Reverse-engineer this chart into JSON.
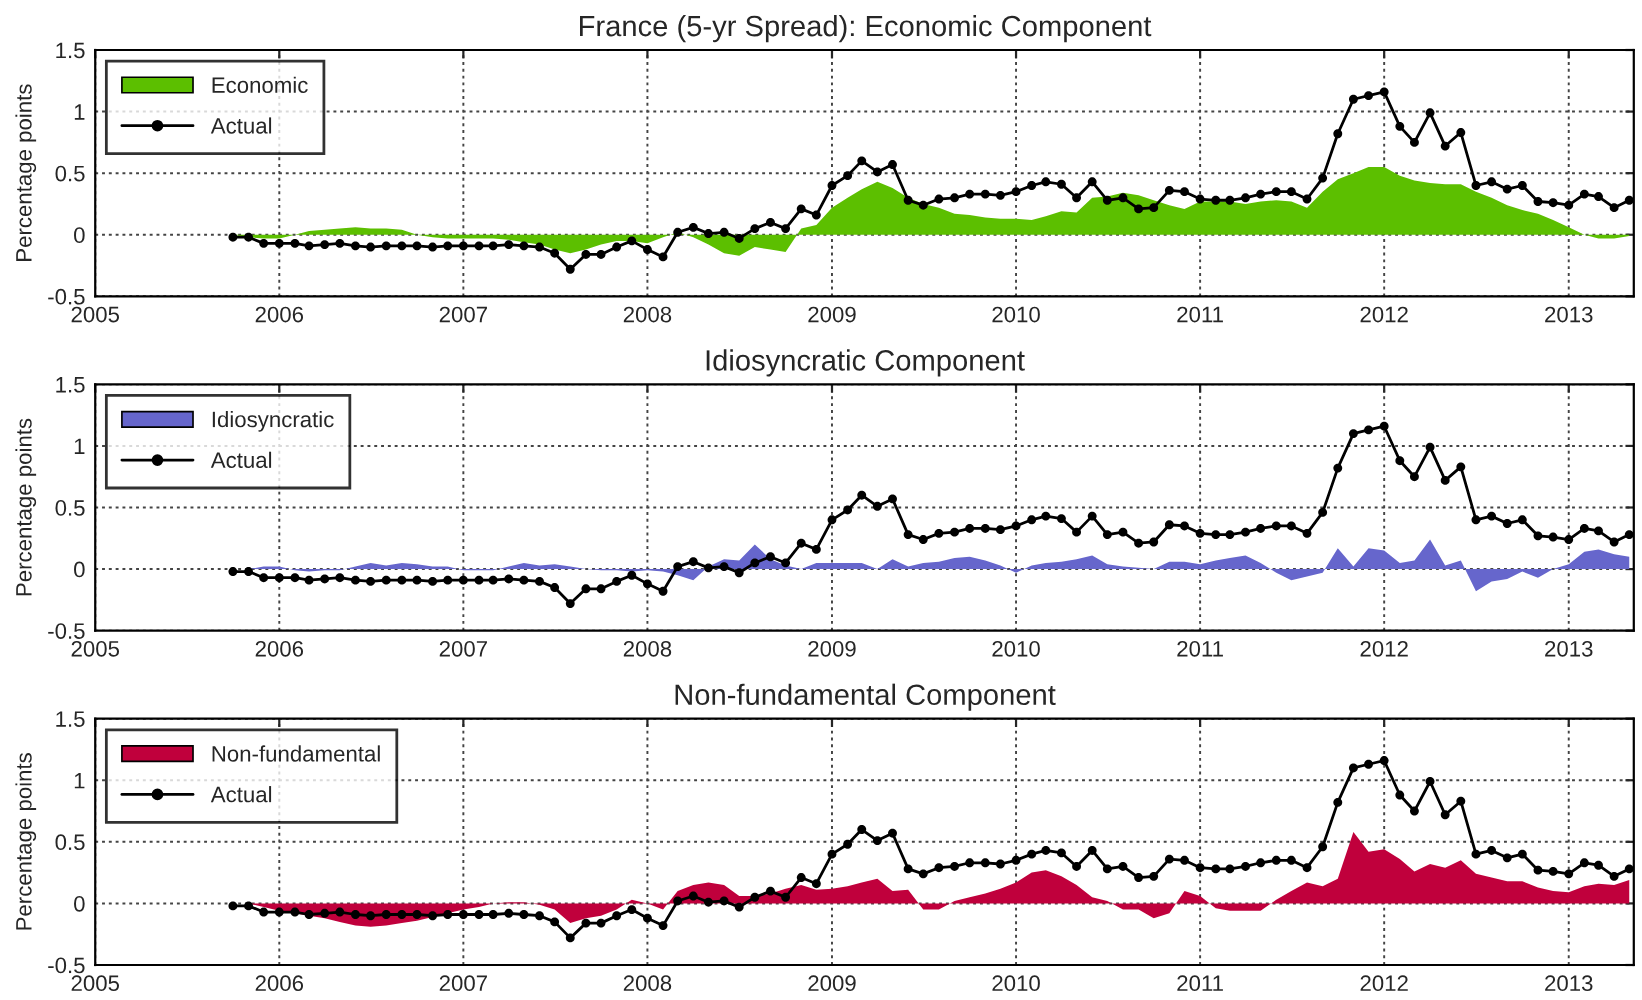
{
  "chart_data": [
    {
      "type": "area",
      "title": "France (5-yr Spread): Economic Component",
      "ylabel": "Percentage points",
      "x": [
        "2005-10",
        "2005-11",
        "2005-12",
        "2006-01",
        "2006-02",
        "2006-03",
        "2006-04",
        "2006-05",
        "2006-06",
        "2006-07",
        "2006-08",
        "2006-09",
        "2006-10",
        "2006-11",
        "2006-12",
        "2007-01",
        "2007-02",
        "2007-03",
        "2007-04",
        "2007-05",
        "2007-06",
        "2007-07",
        "2007-08",
        "2007-09",
        "2007-10",
        "2007-11",
        "2007-12",
        "2008-01",
        "2008-02",
        "2008-03",
        "2008-04",
        "2008-05",
        "2008-06",
        "2008-07",
        "2008-08",
        "2008-09",
        "2008-10",
        "2008-11",
        "2008-12",
        "2009-01",
        "2009-02",
        "2009-03",
        "2009-04",
        "2009-05",
        "2009-06",
        "2009-07",
        "2009-08",
        "2009-09",
        "2009-10",
        "2009-11",
        "2009-12",
        "2010-01",
        "2010-02",
        "2010-03",
        "2010-04",
        "2010-05",
        "2010-06",
        "2010-07",
        "2010-08",
        "2010-09",
        "2010-10",
        "2010-11",
        "2010-12",
        "2011-01",
        "2011-02",
        "2011-03",
        "2011-04",
        "2011-05",
        "2011-06",
        "2011-07",
        "2011-08",
        "2011-09",
        "2011-10",
        "2011-11",
        "2011-12",
        "2012-01",
        "2012-02",
        "2012-03",
        "2012-04",
        "2012-05",
        "2012-06",
        "2012-07",
        "2012-08",
        "2012-09",
        "2012-10",
        "2012-11",
        "2012-12",
        "2013-01",
        "2013-02",
        "2013-03",
        "2013-04",
        "2013-05"
      ],
      "series": [
        {
          "name": "Economic",
          "color": "#5cbf00",
          "values": [
            0,
            -0.02,
            -0.03,
            -0.03,
            0.0,
            0.03,
            0.04,
            0.05,
            0.06,
            0.05,
            0.05,
            0.04,
            0.0,
            -0.02,
            -0.03,
            -0.03,
            -0.03,
            -0.03,
            -0.04,
            -0.06,
            -0.08,
            -0.12,
            -0.15,
            -0.12,
            -0.08,
            -0.05,
            -0.05,
            -0.07,
            -0.02,
            0.02,
            -0.02,
            -0.08,
            -0.15,
            -0.17,
            -0.1,
            -0.12,
            -0.14,
            0.05,
            0.08,
            0.22,
            0.3,
            0.37,
            0.43,
            0.38,
            0.3,
            0.25,
            0.22,
            0.17,
            0.16,
            0.14,
            0.13,
            0.13,
            0.12,
            0.15,
            0.19,
            0.18,
            0.3,
            0.31,
            0.34,
            0.32,
            0.28,
            0.24,
            0.21,
            0.27,
            0.27,
            0.27,
            0.25,
            0.27,
            0.28,
            0.27,
            0.22,
            0.35,
            0.45,
            0.5,
            0.55,
            0.55,
            0.48,
            0.44,
            0.42,
            0.41,
            0.41,
            0.35,
            0.3,
            0.24,
            0.2,
            0.17,
            0.12,
            0.06,
            0.0,
            -0.03,
            -0.03,
            -0.01
          ]
        },
        {
          "name": "Actual",
          "type": "line",
          "color": "#000000",
          "marker": "circle",
          "values": [
            -0.02,
            -0.02,
            -0.07,
            -0.07,
            -0.07,
            -0.09,
            -0.08,
            -0.07,
            -0.09,
            -0.1,
            -0.09,
            -0.09,
            -0.09,
            -0.1,
            -0.09,
            -0.09,
            -0.09,
            -0.09,
            -0.08,
            -0.09,
            -0.1,
            -0.15,
            -0.28,
            -0.16,
            -0.16,
            -0.1,
            -0.05,
            -0.12,
            -0.18,
            0.02,
            0.06,
            0.01,
            0.02,
            -0.03,
            0.05,
            0.1,
            0.05,
            0.21,
            0.16,
            0.4,
            0.48,
            0.6,
            0.51,
            0.57,
            0.28,
            0.24,
            0.29,
            0.3,
            0.33,
            0.33,
            0.32,
            0.35,
            0.4,
            0.43,
            0.41,
            0.3,
            0.43,
            0.28,
            0.3,
            0.21,
            0.22,
            0.36,
            0.35,
            0.29,
            0.28,
            0.28,
            0.3,
            0.33,
            0.35,
            0.35,
            0.29,
            0.46,
            0.82,
            1.1,
            1.13,
            1.16,
            0.88,
            0.75,
            0.99,
            0.72,
            0.83,
            0.4,
            0.43,
            0.37,
            0.4,
            0.27,
            0.26,
            0.24,
            0.33,
            0.31,
            0.22,
            0.28
          ]
        }
      ],
      "xlim": [
        "2005-01-01",
        "2013-05-10"
      ],
      "xticks": [
        "2005",
        "2006",
        "2007",
        "2008",
        "2009",
        "2010",
        "2011",
        "2012",
        "2013"
      ],
      "ylim": [
        -0.5,
        1.5
      ],
      "yticks": [
        -0.5,
        0,
        0.5,
        1,
        1.5
      ],
      "grid": true,
      "legend": "top left",
      "line_style": "solid"
    },
    {
      "type": "area",
      "title": "Idiosyncratic Component",
      "ylabel": "Percentage points",
      "x": [
        "2005-10",
        "2005-11",
        "2005-12",
        "2006-01",
        "2006-02",
        "2006-03",
        "2006-04",
        "2006-05",
        "2006-06",
        "2006-07",
        "2006-08",
        "2006-09",
        "2006-10",
        "2006-11",
        "2006-12",
        "2007-01",
        "2007-02",
        "2007-03",
        "2007-04",
        "2007-05",
        "2007-06",
        "2007-07",
        "2007-08",
        "2007-09",
        "2007-10",
        "2007-11",
        "2007-12",
        "2008-01",
        "2008-02",
        "2008-03",
        "2008-04",
        "2008-05",
        "2008-06",
        "2008-07",
        "2008-08",
        "2008-09",
        "2008-10",
        "2008-11",
        "2008-12",
        "2009-01",
        "2009-02",
        "2009-03",
        "2009-04",
        "2009-05",
        "2009-06",
        "2009-07",
        "2009-08",
        "2009-09",
        "2009-10",
        "2009-11",
        "2009-12",
        "2010-01",
        "2010-02",
        "2010-03",
        "2010-04",
        "2010-05",
        "2010-06",
        "2010-07",
        "2010-08",
        "2010-09",
        "2010-10",
        "2010-11",
        "2010-12",
        "2011-01",
        "2011-02",
        "2011-03",
        "2011-04",
        "2011-05",
        "2011-06",
        "2011-07",
        "2011-08",
        "2011-09",
        "2011-10",
        "2011-11",
        "2011-12",
        "2012-01",
        "2012-02",
        "2012-03",
        "2012-04",
        "2012-05",
        "2012-06",
        "2012-07",
        "2012-08",
        "2012-09",
        "2012-10",
        "2012-11",
        "2012-12",
        "2013-01",
        "2013-02",
        "2013-03",
        "2013-04",
        "2013-05"
      ],
      "series": [
        {
          "name": "Idiosyncratic",
          "color": "#6666cc",
          "values": [
            0,
            0,
            0.02,
            0.02,
            -0.01,
            -0.02,
            -0.01,
            -0.01,
            0.02,
            0.05,
            0.03,
            0.05,
            0.04,
            0.02,
            0.02,
            -0.01,
            -0.01,
            -0.01,
            0.02,
            0.05,
            0.03,
            0.04,
            0.02,
            0.0,
            -0.01,
            -0.01,
            -0.02,
            -0.01,
            -0.02,
            -0.05,
            -0.09,
            0.02,
            0.08,
            0.07,
            0.2,
            0.08,
            0.03,
            0.0,
            0.05,
            0.05,
            0.05,
            0.05,
            0.0,
            0.08,
            0.02,
            0.05,
            0.06,
            0.09,
            0.1,
            0.07,
            0.03,
            -0.03,
            0.03,
            0.05,
            0.06,
            0.08,
            0.11,
            0.04,
            0.02,
            0.01,
            0.0,
            0.06,
            0.06,
            0.04,
            0.07,
            0.09,
            0.11,
            0.05,
            -0.03,
            -0.09,
            -0.06,
            -0.03,
            0.17,
            0.02,
            0.17,
            0.15,
            0.05,
            0.07,
            0.24,
            0.03,
            0.07,
            -0.18,
            -0.1,
            -0.08,
            -0.02,
            -0.07,
            0.0,
            0.04,
            0.14,
            0.16,
            0.12,
            0.1
          ]
        },
        {
          "name": "Actual",
          "type": "line",
          "color": "#000000",
          "marker": "circle",
          "values": [
            -0.02,
            -0.02,
            -0.07,
            -0.07,
            -0.07,
            -0.09,
            -0.08,
            -0.07,
            -0.09,
            -0.1,
            -0.09,
            -0.09,
            -0.09,
            -0.1,
            -0.09,
            -0.09,
            -0.09,
            -0.09,
            -0.08,
            -0.09,
            -0.1,
            -0.15,
            -0.28,
            -0.16,
            -0.16,
            -0.1,
            -0.05,
            -0.12,
            -0.18,
            0.02,
            0.06,
            0.01,
            0.02,
            -0.03,
            0.05,
            0.1,
            0.05,
            0.21,
            0.16,
            0.4,
            0.48,
            0.6,
            0.51,
            0.57,
            0.28,
            0.24,
            0.29,
            0.3,
            0.33,
            0.33,
            0.32,
            0.35,
            0.4,
            0.43,
            0.41,
            0.3,
            0.43,
            0.28,
            0.3,
            0.21,
            0.22,
            0.36,
            0.35,
            0.29,
            0.28,
            0.28,
            0.3,
            0.33,
            0.35,
            0.35,
            0.29,
            0.46,
            0.82,
            1.1,
            1.13,
            1.16,
            0.88,
            0.75,
            0.99,
            0.72,
            0.83,
            0.4,
            0.43,
            0.37,
            0.4,
            0.27,
            0.26,
            0.24,
            0.33,
            0.31,
            0.22,
            0.28
          ]
        }
      ],
      "xlim": [
        "2005-01-01",
        "2013-05-10"
      ],
      "xticks": [
        "2005",
        "2006",
        "2007",
        "2008",
        "2009",
        "2010",
        "2011",
        "2012",
        "2013"
      ],
      "ylim": [
        -0.5,
        1.5
      ],
      "yticks": [
        -0.5,
        0,
        0.5,
        1,
        1.5
      ],
      "grid": true,
      "legend": "top left",
      "line_style": "solid"
    },
    {
      "type": "area",
      "title": "Non-fundamental Component",
      "ylabel": "Percentage points",
      "x": [
        "2005-10",
        "2005-11",
        "2005-12",
        "2006-01",
        "2006-02",
        "2006-03",
        "2006-04",
        "2006-05",
        "2006-06",
        "2006-07",
        "2006-08",
        "2006-09",
        "2006-10",
        "2006-11",
        "2006-12",
        "2007-01",
        "2007-02",
        "2007-03",
        "2007-04",
        "2007-05",
        "2007-06",
        "2007-07",
        "2007-08",
        "2007-09",
        "2007-10",
        "2007-11",
        "2007-12",
        "2008-01",
        "2008-02",
        "2008-03",
        "2008-04",
        "2008-05",
        "2008-06",
        "2008-07",
        "2008-08",
        "2008-09",
        "2008-10",
        "2008-11",
        "2008-12",
        "2009-01",
        "2009-02",
        "2009-03",
        "2009-04",
        "2009-05",
        "2009-06",
        "2009-07",
        "2009-08",
        "2009-09",
        "2009-10",
        "2009-11",
        "2009-12",
        "2010-01",
        "2010-02",
        "2010-03",
        "2010-04",
        "2010-05",
        "2010-06",
        "2010-07",
        "2010-08",
        "2010-09",
        "2010-10",
        "2010-11",
        "2010-12",
        "2011-01",
        "2011-02",
        "2011-03",
        "2011-04",
        "2011-05",
        "2011-06",
        "2011-07",
        "2011-08",
        "2011-09",
        "2011-10",
        "2011-11",
        "2011-12",
        "2012-01",
        "2012-02",
        "2012-03",
        "2012-04",
        "2012-05",
        "2012-06",
        "2012-07",
        "2012-08",
        "2012-09",
        "2012-10",
        "2012-11",
        "2012-12",
        "2013-01",
        "2013-02",
        "2013-03",
        "2013-04",
        "2013-05"
      ],
      "series": [
        {
          "name": "Non-fundamental",
          "color": "#c0003c",
          "values": [
            0,
            0,
            -0.03,
            -0.06,
            -0.08,
            -0.1,
            -0.12,
            -0.15,
            -0.18,
            -0.19,
            -0.18,
            -0.16,
            -0.14,
            -0.11,
            -0.08,
            -0.05,
            -0.03,
            0.0,
            0.01,
            0.01,
            -0.01,
            -0.05,
            -0.16,
            -0.12,
            -0.1,
            -0.05,
            0.03,
            0.0,
            -0.05,
            0.1,
            0.15,
            0.17,
            0.15,
            0.06,
            0.06,
            0.08,
            0.12,
            0.15,
            0.11,
            0.12,
            0.14,
            0.17,
            0.2,
            0.1,
            0.11,
            -0.05,
            -0.05,
            0.02,
            0.05,
            0.08,
            0.12,
            0.17,
            0.25,
            0.27,
            0.22,
            0.15,
            0.05,
            0.02,
            -0.05,
            -0.05,
            -0.12,
            -0.08,
            0.1,
            0.06,
            -0.04,
            -0.06,
            -0.06,
            -0.06,
            0.03,
            0.1,
            0.17,
            0.14,
            0.2,
            0.58,
            0.42,
            0.44,
            0.36,
            0.26,
            0.32,
            0.29,
            0.35,
            0.24,
            0.21,
            0.18,
            0.18,
            0.13,
            0.1,
            0.09,
            0.14,
            0.16,
            0.15,
            0.19
          ]
        },
        {
          "name": "Actual",
          "type": "line",
          "color": "#000000",
          "marker": "circle",
          "values": [
            -0.02,
            -0.02,
            -0.07,
            -0.07,
            -0.07,
            -0.09,
            -0.08,
            -0.07,
            -0.09,
            -0.1,
            -0.09,
            -0.09,
            -0.09,
            -0.1,
            -0.09,
            -0.09,
            -0.09,
            -0.09,
            -0.08,
            -0.09,
            -0.1,
            -0.15,
            -0.28,
            -0.16,
            -0.16,
            -0.1,
            -0.05,
            -0.12,
            -0.18,
            0.02,
            0.06,
            0.01,
            0.02,
            -0.03,
            0.05,
            0.1,
            0.05,
            0.21,
            0.16,
            0.4,
            0.48,
            0.6,
            0.51,
            0.57,
            0.28,
            0.24,
            0.29,
            0.3,
            0.33,
            0.33,
            0.32,
            0.35,
            0.4,
            0.43,
            0.41,
            0.3,
            0.43,
            0.28,
            0.3,
            0.21,
            0.22,
            0.36,
            0.35,
            0.29,
            0.28,
            0.28,
            0.3,
            0.33,
            0.35,
            0.35,
            0.29,
            0.46,
            0.82,
            1.1,
            1.13,
            1.16,
            0.88,
            0.75,
            0.99,
            0.72,
            0.83,
            0.4,
            0.43,
            0.37,
            0.4,
            0.27,
            0.26,
            0.24,
            0.33,
            0.31,
            0.22,
            0.28
          ]
        }
      ],
      "xlim": [
        "2005-01-01",
        "2013-05-10"
      ],
      "xticks": [
        "2005",
        "2006",
        "2007",
        "2008",
        "2009",
        "2010",
        "2011",
        "2012",
        "2013"
      ],
      "ylim": [
        -0.5,
        1.5
      ],
      "yticks": [
        -0.5,
        0,
        0.5,
        1,
        1.5
      ],
      "grid": true,
      "legend": "top left",
      "line_style": "solid"
    }
  ]
}
